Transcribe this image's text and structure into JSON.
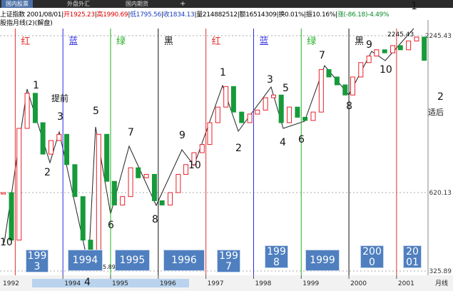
{
  "tabs": [
    "国内股票",
    "外盘外汇",
    "国内期货",
    "+"
  ],
  "info": [
    {
      "text": "上证指数 2001/08/01",
      "color": "#000"
    },
    {
      "text": "开1925.23",
      "color": "#d00"
    },
    {
      "text": "高1990.69",
      "color": "#d00"
    },
    {
      "text": "低1795.56",
      "color": "#1a3fc0"
    },
    {
      "text": "收1834.13",
      "color": "#1a3fc0"
    },
    {
      "text": "量214882512",
      "color": "#000"
    },
    {
      "text": "额16514309",
      "color": "#000"
    },
    {
      "text": "换0.01%",
      "color": "#000"
    },
    {
      "text": "振10.16%",
      "color": "#000"
    },
    {
      "text": "涨(-86.18)-4.49%",
      "color": "#0a8a2a"
    }
  ],
  "chart_data": {
    "type": "candlestick",
    "subtitle": "股指月线(2)(解盘)",
    "log_scale": true,
    "ylim": [
      325.89,
      2245.43
    ],
    "yticks": [
      325.89,
      620.13,
      2245.43
    ],
    "xlim": [
      1992.68,
      2001.66
    ],
    "axis_start_label": "1992",
    "xticks": [
      1994,
      1995,
      1996,
      1997,
      1998,
      1999,
      2000,
      2001
    ],
    "x_axis_title": "月线",
    "up_color": "#e8202a",
    "down_color": "#169a3a",
    "x": [
      1992.75,
      1992.92,
      1993.08,
      1993.25,
      1993.42,
      1993.58,
      1993.75,
      1993.92,
      1994.08,
      1994.25,
      1994.42,
      1994.58,
      1994.75,
      1994.92,
      1995.08,
      1995.25,
      1995.42,
      1995.58,
      1995.75,
      1995.92,
      1996.08,
      1996.25,
      1996.42,
      1996.58,
      1996.75,
      1996.92,
      1997.08,
      1997.25,
      1997.42,
      1997.58,
      1997.75,
      1997.92,
      1998.08,
      1998.25,
      1998.42,
      1998.58,
      1998.75,
      1998.92,
      1999.08,
      1999.25,
      1999.42,
      1999.58,
      1999.75,
      1999.92,
      2000.08,
      2000.25,
      2000.42,
      2000.58,
      2000.75,
      2000.92,
      2001.08,
      2001.25,
      2001.42,
      2001.58
    ],
    "series": [
      {
        "values": [
          620,
          420,
          1050,
          1400,
          1100,
          850,
          950,
          1000,
          780,
          600,
          420,
          340,
          1000,
          680,
          560,
          600,
          760,
          700,
          720,
          580,
          560,
          620,
          720,
          780,
          860,
          920,
          1100,
          1250,
          1480,
          1200,
          1100,
          1180,
          1220,
          1350,
          1380,
          1100,
          1250,
          1150,
          1120,
          1200,
          1700,
          1600,
          1500,
          1380,
          1600,
          1800,
          1900,
          2000,
          1950,
          2070,
          2000,
          2150,
          2220,
          1834
        ]
      }
    ],
    "cycle_lines": [
      {
        "x": 1993,
        "label": "红",
        "color": "#e03030"
      },
      {
        "x": 1994,
        "label": "蓝",
        "color": "#2a2ae0"
      },
      {
        "x": 1995,
        "label": "绿",
        "color": "#22b022"
      },
      {
        "x": 1996,
        "label": "黑",
        "color": "#111111"
      },
      {
        "x": 1997,
        "label": "红",
        "color": "#e03030"
      },
      {
        "x": 1998,
        "label": "蓝",
        "color": "#2a2ae0"
      },
      {
        "x": 1999,
        "label": "绿",
        "color": "#22b022"
      },
      {
        "x": 2000,
        "label": "黑",
        "color": "#111111"
      },
      {
        "x": 2001,
        "label": "",
        "color": "#e03030"
      }
    ],
    "year_boxes": [
      "1993",
      "1994",
      "1995",
      "1996",
      "1997",
      "1998",
      "1999",
      "2000",
      "2001"
    ],
    "annotations": [
      "10",
      "1",
      "提前",
      "3",
      "2",
      "4",
      "5",
      "6",
      "7",
      "8",
      "9",
      "10",
      "1",
      "2",
      "3",
      "5",
      "4",
      "6",
      "7",
      "8",
      "9",
      "10",
      "1",
      "2245.43",
      "5.89",
      "2",
      "适后"
    ]
  }
}
